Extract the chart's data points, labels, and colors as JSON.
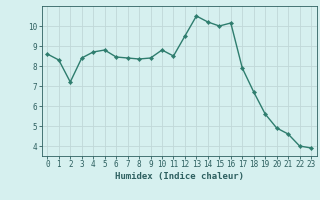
{
  "x": [
    0,
    1,
    2,
    3,
    4,
    5,
    6,
    7,
    8,
    9,
    10,
    11,
    12,
    13,
    14,
    15,
    16,
    17,
    18,
    19,
    20,
    21,
    22,
    23
  ],
  "y": [
    8.6,
    8.3,
    7.2,
    8.4,
    8.7,
    8.8,
    8.45,
    8.4,
    8.35,
    8.4,
    8.8,
    8.5,
    9.5,
    10.5,
    10.2,
    10.0,
    10.15,
    7.9,
    6.7,
    5.6,
    4.9,
    4.6,
    4.0,
    3.9
  ],
  "line_color": "#2e7d6e",
  "marker": "D",
  "markersize": 2.2,
  "linewidth": 1.0,
  "bg_color": "#d6f0ef",
  "grid_color": "#c0d8d8",
  "xlabel": "Humidex (Indice chaleur)",
  "xlim": [
    -0.5,
    23.5
  ],
  "ylim": [
    3.5,
    11.0
  ],
  "yticks": [
    4,
    5,
    6,
    7,
    8,
    9,
    10
  ],
  "xtick_labels": [
    "0",
    "1",
    "2",
    "3",
    "4",
    "5",
    "6",
    "7",
    "8",
    "9",
    "10",
    "11",
    "12",
    "13",
    "14",
    "15",
    "16",
    "17",
    "18",
    "19",
    "20",
    "21",
    "22",
    "23"
  ],
  "xlabel_fontsize": 6.5,
  "tick_fontsize": 5.5,
  "tick_color": "#2e6060",
  "axis_color": "#2e6060"
}
